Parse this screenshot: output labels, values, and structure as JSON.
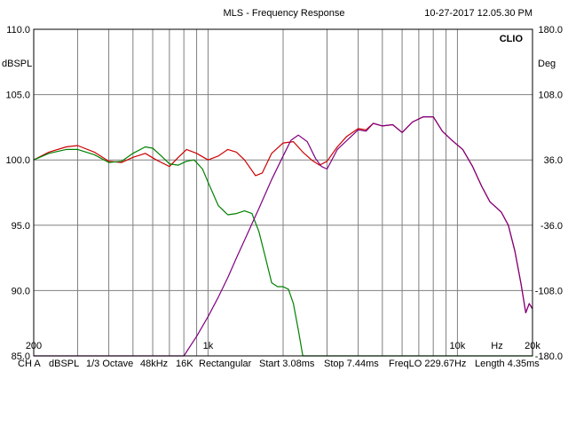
{
  "header": {
    "title": "MLS - Frequency Response",
    "timestamp": "10-27-2017 12.05.30 PM"
  },
  "footer": {
    "items": [
      "CH A",
      "dBSPL",
      "1/3 Octave",
      "48kHz",
      "16K",
      "Rectangular",
      "Start 3.08ms",
      "Stop 7.44ms",
      "FreqLO 229.67Hz",
      "Length 4.35ms"
    ]
  },
  "chart_data": {
    "type": "line",
    "brand": "CLIO",
    "ylabel_left": "dBSPL",
    "ylabel_right": "Deg",
    "xlabel": "Hz",
    "xlim": [
      200,
      20000
    ],
    "xscale": "log",
    "ylim": [
      85,
      110
    ],
    "ylim_right": [
      -180,
      180
    ],
    "y_ticks": [
      "110.0",
      "105.0",
      "100.0",
      "95.0",
      "90.0",
      "85.0"
    ],
    "y_ticks_right": [
      "180.0",
      "108.0",
      "36.0",
      "-36.0",
      "-108.0",
      "-180.0"
    ],
    "x_tick_labels": [
      {
        "f": 200,
        "label": "200"
      },
      {
        "f": 1000,
        "label": "1k"
      },
      {
        "f": 10000,
        "label": "10k"
      },
      {
        "f": 20000,
        "label": "20k"
      }
    ],
    "grid": true,
    "colors": {
      "red": "#cc0000",
      "green": "#008000",
      "purple": "#800080",
      "grid": "#808080"
    },
    "series": [
      {
        "color": "red",
        "points": [
          [
            200,
            100.0
          ],
          [
            230,
            100.6
          ],
          [
            270,
            101.0
          ],
          [
            300,
            101.1
          ],
          [
            350,
            100.6
          ],
          [
            400,
            99.9
          ],
          [
            450,
            99.8
          ],
          [
            500,
            100.2
          ],
          [
            560,
            100.5
          ],
          [
            620,
            100.0
          ],
          [
            700,
            99.5
          ],
          [
            760,
            100.2
          ],
          [
            820,
            100.8
          ],
          [
            900,
            100.5
          ],
          [
            1000,
            100.0
          ],
          [
            1100,
            100.3
          ],
          [
            1200,
            100.8
          ],
          [
            1300,
            100.6
          ],
          [
            1400,
            100.0
          ],
          [
            1550,
            98.8
          ],
          [
            1650,
            99.0
          ],
          [
            1800,
            100.5
          ],
          [
            2000,
            101.3
          ],
          [
            2200,
            101.4
          ],
          [
            2400,
            100.6
          ],
          [
            2600,
            100.0
          ],
          [
            2800,
            99.6
          ],
          [
            3000,
            99.9
          ],
          [
            3300,
            101.0
          ],
          [
            3600,
            101.8
          ],
          [
            4000,
            102.4
          ],
          [
            4300,
            102.3
          ],
          [
            4600,
            102.8
          ],
          [
            5000,
            102.6
          ],
          [
            5500,
            102.7
          ],
          [
            6000,
            102.1
          ],
          [
            6600,
            102.9
          ],
          [
            7300,
            103.3
          ],
          [
            8000,
            103.3
          ],
          [
            8700,
            102.2
          ],
          [
            9500,
            101.5
          ],
          [
            10500,
            100.8
          ],
          [
            11500,
            99.5
          ],
          [
            12500,
            98.0
          ],
          [
            13500,
            96.8
          ],
          [
            15000,
            96.0
          ],
          [
            16000,
            95.0
          ],
          [
            17000,
            93.0
          ],
          [
            18000,
            90.5
          ],
          [
            18800,
            88.3
          ],
          [
            19400,
            89.0
          ],
          [
            20000,
            88.6
          ]
        ]
      },
      {
        "color": "green",
        "points": [
          [
            200,
            100.0
          ],
          [
            230,
            100.5
          ],
          [
            270,
            100.8
          ],
          [
            300,
            100.8
          ],
          [
            350,
            100.4
          ],
          [
            400,
            99.8
          ],
          [
            450,
            99.9
          ],
          [
            500,
            100.5
          ],
          [
            560,
            101.0
          ],
          [
            600,
            100.9
          ],
          [
            650,
            100.3
          ],
          [
            700,
            99.7
          ],
          [
            760,
            99.6
          ],
          [
            820,
            99.9
          ],
          [
            880,
            100.0
          ],
          [
            950,
            99.3
          ],
          [
            1000,
            98.3
          ],
          [
            1100,
            96.5
          ],
          [
            1200,
            95.8
          ],
          [
            1300,
            95.9
          ],
          [
            1400,
            96.1
          ],
          [
            1500,
            95.9
          ],
          [
            1600,
            94.5
          ],
          [
            1700,
            92.5
          ],
          [
            1800,
            90.6
          ],
          [
            1900,
            90.3
          ],
          [
            2000,
            90.3
          ],
          [
            2100,
            90.1
          ],
          [
            2200,
            89.0
          ],
          [
            2300,
            87.0
          ],
          [
            2400,
            85.0
          ],
          [
            20000,
            85.0
          ]
        ]
      },
      {
        "color": "purple",
        "points": [
          [
            200,
            85.0
          ],
          [
            800,
            85.0
          ],
          [
            900,
            86.5
          ],
          [
            1000,
            88.0
          ],
          [
            1100,
            89.5
          ],
          [
            1200,
            91.0
          ],
          [
            1300,
            92.5
          ],
          [
            1450,
            94.5
          ],
          [
            1600,
            96.3
          ],
          [
            1800,
            98.5
          ],
          [
            2000,
            100.3
          ],
          [
            2150,
            101.5
          ],
          [
            2300,
            101.9
          ],
          [
            2500,
            101.4
          ],
          [
            2700,
            100.1
          ],
          [
            2850,
            99.5
          ],
          [
            3000,
            99.3
          ],
          [
            3300,
            100.8
          ],
          [
            3700,
            101.7
          ],
          [
            4000,
            102.3
          ],
          [
            4300,
            102.2
          ],
          [
            4600,
            102.8
          ],
          [
            5000,
            102.6
          ],
          [
            5500,
            102.7
          ],
          [
            6000,
            102.1
          ],
          [
            6600,
            102.9
          ],
          [
            7300,
            103.3
          ],
          [
            8000,
            103.3
          ],
          [
            8700,
            102.2
          ],
          [
            9500,
            101.5
          ],
          [
            10500,
            100.8
          ],
          [
            11500,
            99.5
          ],
          [
            12500,
            98.0
          ],
          [
            13500,
            96.8
          ],
          [
            15000,
            96.0
          ],
          [
            16000,
            95.0
          ],
          [
            17000,
            93.0
          ],
          [
            18000,
            90.5
          ],
          [
            18800,
            88.3
          ],
          [
            19400,
            89.0
          ],
          [
            20000,
            88.6
          ]
        ]
      }
    ]
  }
}
